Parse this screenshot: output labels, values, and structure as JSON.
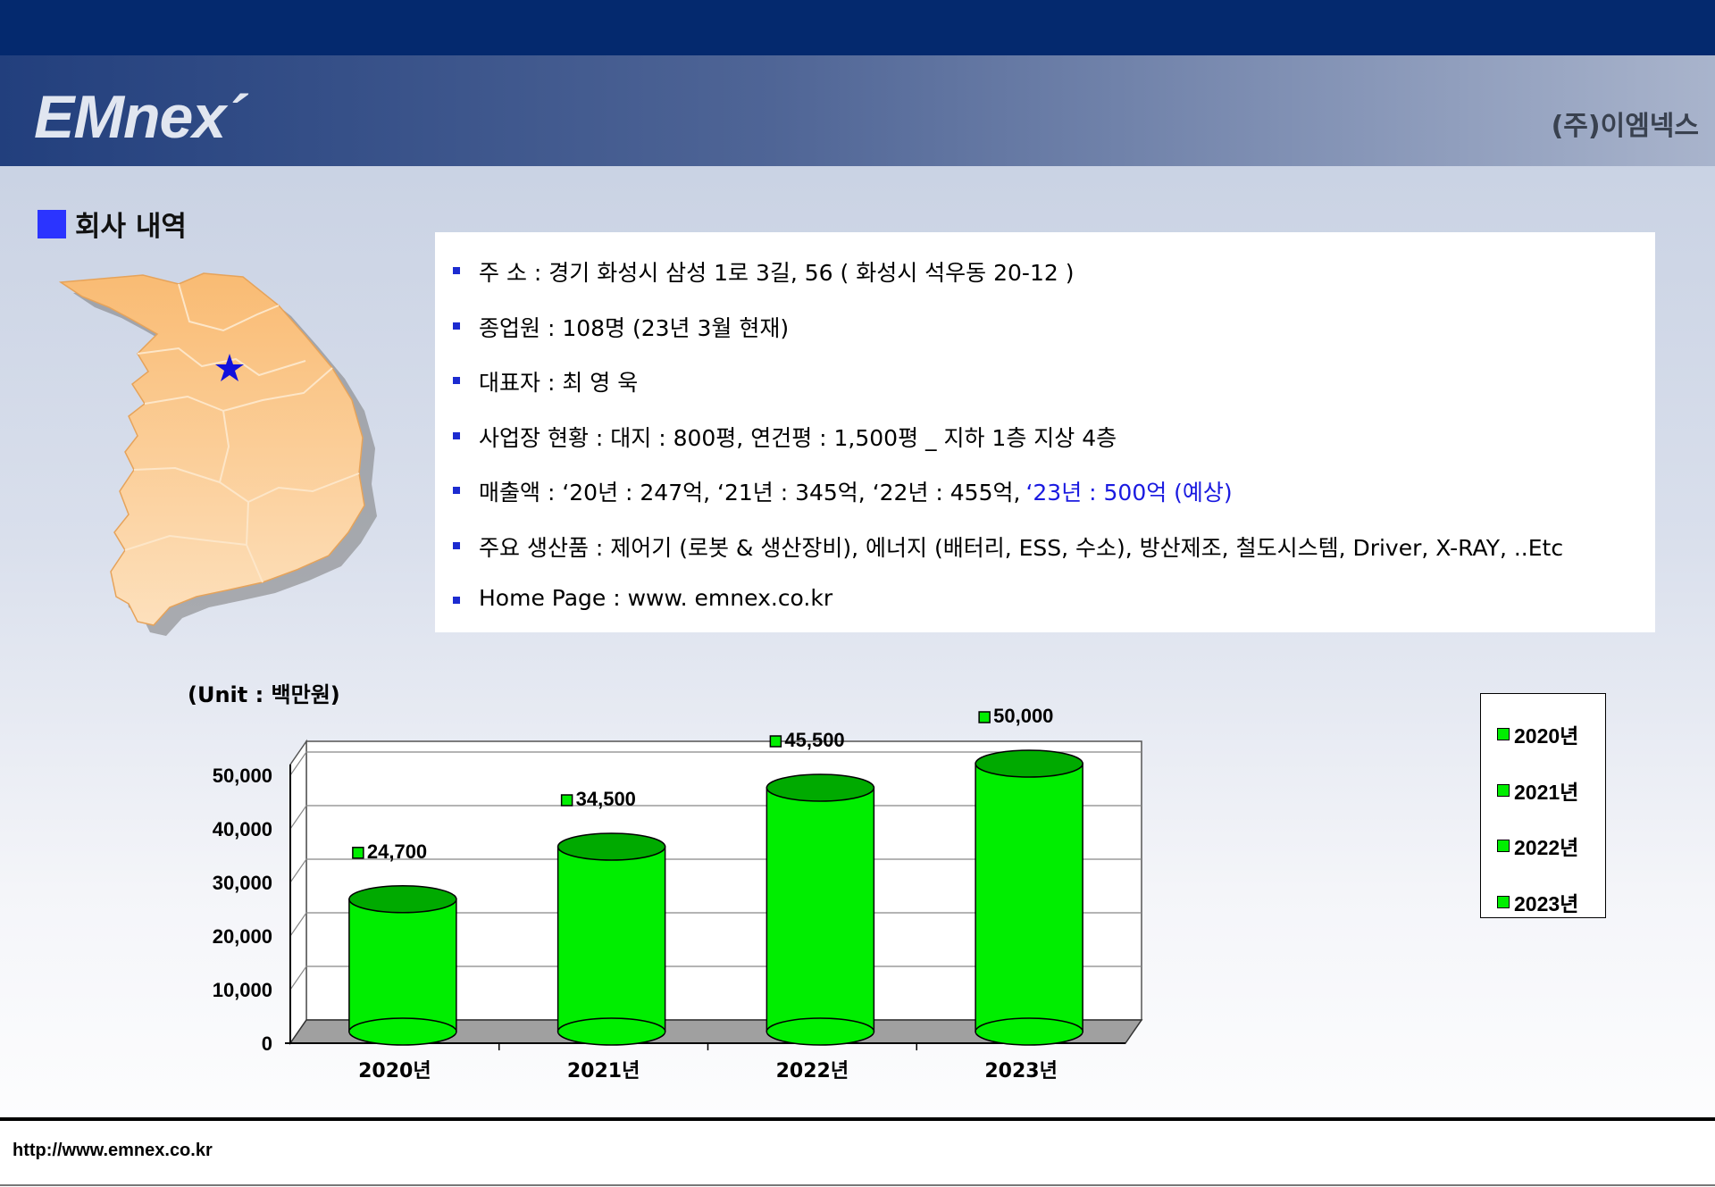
{
  "header": {
    "logo": "EMnex´",
    "company": "(주)이엠넥스"
  },
  "section": {
    "title": "회사 내역"
  },
  "info": {
    "items": [
      {
        "text": "주 소      : 경기 화성시 삼성 1로 3길, 56   ( 화성시 석우동 20-12 )",
        "extra": ""
      },
      {
        "text": "종업원    : 108명 (23년 3월 현재)",
        "extra": ""
      },
      {
        "text": "대표자    : 최 영 욱",
        "extra": ""
      },
      {
        "text": "사업장 현황 : 대지 : 800평,  연건평 : 1,500평 _ 지하 1층  지상 4층",
        "extra": ""
      },
      {
        "text": " 매출액  :  ‘20년 :  247억,     ‘21년 :  345억,     ‘22년 :  455억,",
        "extra": "‘23년 :  500억 (예상)"
      },
      {
        "text": "주요 생산품 : 제어기 (로봇 & 생산장비),  에너지 (배터리, ESS, 수소), 방산제조, 철도시스템, Driver, X-RAY, ..Etc",
        "extra": ""
      },
      {
        "text": "Home Page : www. emnex.co.kr",
        "extra": ""
      }
    ]
  },
  "map": {
    "marker_icon": "star-icon",
    "colors": {
      "land": "#fcc88a",
      "marker": "#1111dd"
    }
  },
  "chart_data": {
    "type": "bar",
    "unit_label": "(Unit : 백만원)",
    "categories": [
      "2020년",
      "2021년",
      "2022년",
      "2023년"
    ],
    "values": [
      24700,
      34500,
      45500,
      50000
    ],
    "data_labels": [
      "24,700",
      "34,500",
      "45,500",
      "50,000"
    ],
    "yticks": [
      "0",
      "10,000",
      "20,000",
      "30,000",
      "40,000",
      "50,000"
    ],
    "ylim": [
      0,
      50000
    ],
    "grid": true,
    "legend": {
      "position": "right",
      "entries": [
        "2020년",
        "2021년",
        "2022년",
        "2023년"
      ]
    },
    "colors": {
      "bar": "#00ee00",
      "bar_dark": "#00aa00",
      "floor": "#a0a0a0"
    }
  },
  "footer": {
    "url": "http://www.emnex.co.kr"
  }
}
